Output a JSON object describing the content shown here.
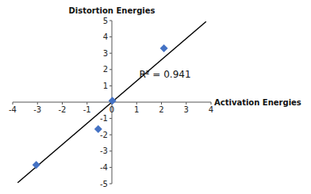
{
  "chart_data": {
    "type": "scatter",
    "xlabel": "Activation Energies",
    "ylabel": "Distortion Energies",
    "series": [
      {
        "type": "line",
        "color": "#000000",
        "x": [
          -3.8,
          3.8
        ],
        "values": [
          -4.94,
          4.94
        ]
      },
      {
        "type": "scatter",
        "color": "#4472C4",
        "marker": "diamond",
        "x": [
          -3.05,
          -0.55,
          0.02,
          2.1
        ],
        "values": [
          -3.85,
          -1.65,
          0.08,
          3.3
        ]
      }
    ],
    "annotations": [
      {
        "text": "R² = 0.941",
        "x": 1.1,
        "y": 1.7
      }
    ],
    "xlim": [
      -4,
      4
    ],
    "ylim": [
      -5,
      5
    ],
    "xticks": [
      -4,
      -3,
      -2,
      -1,
      0,
      1,
      2,
      3,
      4
    ],
    "yticks": [
      -5,
      -4,
      -3,
      -2,
      -1,
      1,
      2,
      3,
      4,
      5
    ]
  }
}
